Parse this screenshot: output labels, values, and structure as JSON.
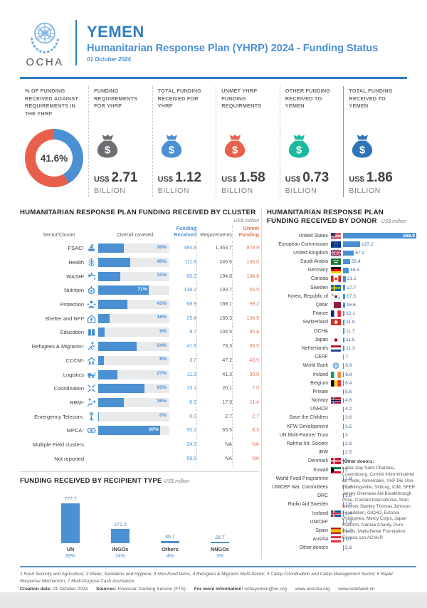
{
  "colors": {
    "brand_blue": "#2f7dc1",
    "bar_blue": "#4a90d2",
    "accent_red": "#e8604c",
    "teal": "#1cb99e",
    "dark_blue": "#2e74b8",
    "gray_bag": "#6d6e71",
    "unmet_orange": "#e0745a",
    "track_gray": "#e9eaec"
  },
  "header": {
    "org": "OCHA",
    "country": "YEMEN",
    "subtitle": "Humanitarian Response Plan (YHRP) 2024 - Funding Status",
    "date": "01 October 2024"
  },
  "stats": [
    {
      "type": "donut",
      "label": "% OF FUNDING RECEIVED AGAINST REQUIREMENTS IN THE YHRP",
      "value": "41.6%",
      "pct": 41.6
    },
    {
      "type": "bag",
      "label": "FUNDING REQUIREMENTS FOR YHRP",
      "icon": "money-bag-icon",
      "color": "#6d6e71",
      "currency": "US$",
      "amount": "2.71",
      "unit": "BILLION"
    },
    {
      "type": "bag",
      "label": "TOTAL FUNDING RECEIVED FOR YHRP",
      "icon": "money-bag-icon",
      "color": "#4a90d2",
      "currency": "US$",
      "amount": "1.12",
      "unit": "BILLION"
    },
    {
      "type": "bag",
      "label": "UNMET YHRP FUNDING REQUIRMENTS",
      "icon": "money-bag-icon",
      "color": "#e8604c",
      "currency": "US$",
      "amount": "1.58",
      "unit": "BILLION"
    },
    {
      "type": "bag",
      "label": "OTHER FUNDING RECEIVED TO YEMEN",
      "icon": "money-bag-icon",
      "color": "#1cb99e",
      "currency": "US$",
      "amount": "0.73",
      "unit": "BILLION",
      "divider": "solid"
    },
    {
      "type": "bag",
      "label": "TOTAL FUNDING RECEIVED TO YEMEN",
      "icon": "money-bag-icon",
      "color": "#2e74b8",
      "currency": "US$",
      "amount": "1.86",
      "unit": "BILLION"
    }
  ],
  "cluster_section": {
    "title": "HUMANITARIAN RESPONSE PLAN FUNDING RECEIVED BY CLUSTER",
    "unit_note": "US$ million",
    "columns": {
      "sector": "Sector/Cluster",
      "covered": "Overall covered",
      "received": "Funding Received",
      "requirements": "Requirements",
      "unmet": "Unmet Funding"
    },
    "rows": [
      {
        "label": "FSAC¹",
        "icon": "ship-icon",
        "pct": 36,
        "received": "484.8",
        "requirements": "1,363.7",
        "unmet": "878.9"
      },
      {
        "label": "Health",
        "icon": "caduceus-icon",
        "pct": 45,
        "received": "111.6",
        "requirements": "249.6",
        "unmet": "138.0"
      },
      {
        "label": "WASH²",
        "icon": "faucet-icon",
        "pct": 31,
        "received": "60.2",
        "requirements": "194.8",
        "unmet": "134.6"
      },
      {
        "label": "Nutrition",
        "icon": "nutrition-icon",
        "pct": 71,
        "received": "138.2",
        "requirements": "193.7",
        "unmet": "55.5"
      },
      {
        "label": "Protection",
        "icon": "protection-icon",
        "pct": 41,
        "received": "68.9",
        "requirements": "168.1",
        "unmet": "99.2"
      },
      {
        "label": "Shelter and NFI³",
        "icon": "shelter-icon",
        "pct": 16,
        "received": "25.4",
        "requirements": "160.3",
        "unmet": "134.9"
      },
      {
        "label": "Education",
        "icon": "education-icon",
        "pct": 9,
        "received": "9.7",
        "requirements": "104.5",
        "unmet": "94.8"
      },
      {
        "label": "Refugees & Migrants⁴",
        "icon": "running-person-icon",
        "pct": 54,
        "received": "41.9",
        "requirements": "78.3",
        "unmet": "36.5"
      },
      {
        "label": "CCCM⁵",
        "icon": "camp-icon",
        "pct": 8,
        "received": "3.7",
        "requirements": "47.2",
        "unmet": "43.5"
      },
      {
        "label": "Logistics",
        "icon": "forklift-icon",
        "pct": 27,
        "received": "11.3",
        "requirements": "41.3",
        "unmet": "30.0"
      },
      {
        "label": "Coordination",
        "icon": "coordination-arrows-icon",
        "pct": 65,
        "received": "13.1",
        "requirements": "20.1",
        "unmet": "7.0"
      },
      {
        "label": "RRM⁶",
        "icon": "rrm-runner-icon",
        "pct": 36,
        "received": "6.5",
        "requirements": "17.9",
        "unmet": "11.4"
      },
      {
        "label": "Emergency Telecom.",
        "icon": "antenna-icon",
        "pct": 0,
        "received": "0.0",
        "requirements": "2.7",
        "unmet": "2.7"
      },
      {
        "label": "MPCA⁷",
        "icon": "cash-icon",
        "pct": 87,
        "received": "55.2",
        "requirements": "63.5",
        "unmet": "8.3"
      },
      {
        "label": "Multiple Field clusters",
        "received": "24.3",
        "requirements": "NA",
        "unmet": "NA"
      },
      {
        "label": "Not reported",
        "received": "69.5",
        "requirements": "NA",
        "unmet": "NA"
      }
    ]
  },
  "donor_section": {
    "title_line1": "HUMANITARIAN RESPONSE PLAN",
    "title_line2": "FUNDING RECEIVED BY DONOR",
    "unit_note": "US$ million",
    "max_value": 588.9,
    "rows": [
      {
        "label": "United States",
        "icon": "flag-us",
        "value": 588.9,
        "display": "588.9"
      },
      {
        "label": "European Commission",
        "icon": "flag-eu",
        "value": 137.2,
        "display": "137.2"
      },
      {
        "label": "United Kingdom",
        "icon": "flag-uk",
        "value": 87.2,
        "display": "87.2"
      },
      {
        "label": "Saudi Arabia",
        "icon": "flag-sa",
        "value": 55.4,
        "display": "55.4"
      },
      {
        "label": "Germany",
        "icon": "flag-de",
        "value": 46.4,
        "display": "46.4"
      },
      {
        "label": "Canada",
        "icon": "flag-ca",
        "value": 21.1,
        "display": "21.1"
      },
      {
        "label": "Sweden",
        "icon": "flag-se",
        "value": 17.7,
        "display": "17.7"
      },
      {
        "label": "Korea, Republic of",
        "icon": "flag-kr",
        "value": 17.3,
        "display": "17.3"
      },
      {
        "label": "Qatar",
        "icon": "flag-qa",
        "value": 16.6,
        "display": "16.6"
      },
      {
        "label": "France",
        "icon": "flag-fr",
        "value": 12.1,
        "display": "12.1"
      },
      {
        "label": "Switzerland",
        "icon": "flag-ch",
        "value": 11.8,
        "display": "11.8"
      },
      {
        "label": "OCHA",
        "value": 11.7,
        "display": "11.7"
      },
      {
        "label": "Japan",
        "icon": "flag-jp",
        "value": 11.5,
        "display": "11.5"
      },
      {
        "label": "Netherlands",
        "icon": "flag-nl",
        "value": 11.3,
        "display": "11.3"
      },
      {
        "label": "CERF",
        "value": 7,
        "display": "7"
      },
      {
        "label": "World Bank",
        "icon": "globe-icon",
        "value": 6.9,
        "display": "6.9"
      },
      {
        "label": "Ireland",
        "icon": "flag-ie",
        "value": 6.8,
        "display": "6.8"
      },
      {
        "label": "Belgium",
        "icon": "flag-be",
        "value": 6.4,
        "display": "6.4"
      },
      {
        "label": "Private",
        "value": 5.6,
        "display": "5.6"
      },
      {
        "label": "Norway",
        "icon": "flag-no",
        "value": 4.6,
        "display": "4.6"
      },
      {
        "label": "UNHCR",
        "value": 4.2,
        "display": "4.2"
      },
      {
        "label": "Save the Children",
        "value": 3.6,
        "display": "3.6"
      },
      {
        "label": "KFW Development",
        "value": 3.5,
        "display": "3.5"
      },
      {
        "label": "UN Multi-Partner Trust",
        "value": 3,
        "display": "3"
      },
      {
        "label": "Rahma Int. Society",
        "value": 2.8,
        "display": "2.8"
      },
      {
        "label": "IRW",
        "value": 2.5,
        "display": "2.5"
      },
      {
        "label": "Denmark",
        "icon": "flag-dk",
        "value": 2,
        "display": "2"
      },
      {
        "label": "Kuwait",
        "icon": "flag-kw",
        "value": 2,
        "display": "2"
      },
      {
        "label": "World Food Programme",
        "value": 1.9,
        "display": "1.9"
      },
      {
        "label": "UNICEF Nat. Committees",
        "value": 1.8,
        "display": "1.8"
      },
      {
        "label": "DRC",
        "value": 1.6,
        "display": "1.6"
      },
      {
        "label": "Radio Aid Sweden",
        "value": 1.6,
        "display": "1.6"
      },
      {
        "label": "Iceland",
        "icon": "flag-is",
        "value": 1.4,
        "display": "1.4"
      },
      {
        "label": "UNICEF",
        "value": 1.3,
        "display": "1.3"
      },
      {
        "label": "Spain",
        "icon": "flag-es",
        "value": 1.2,
        "display": "1.2"
      },
      {
        "label": "Austria",
        "icon": "flag-at",
        "value": 1.1,
        "display": "1.1"
      },
      {
        "label": "Other donors",
        "value": 5.8,
        "display": "5.8"
      }
    ],
    "other_note_title": "*Other donors:",
    "other_note_text": "Latter-Day Saint Charities, Luxembourg, Comité Interministériel de l'Aide, Alimentaire, YHF Die Uno-Flüchtlingshilfe, Stiftung, IOM, SFER Jersey Overseas Aid Breakthrough Prize, Cordaid International, Start Network Stanley Thomas Johnson Foundation, GICHD, Estonia Philippines, Mercy Corps, Japan Platform, Namaa Charity, Pure Hands, Malta Belair Foundation Espana con ACNUR"
  },
  "recipient_section": {
    "title": "FUNDING RECEIVED BY RECIPIENT TYPE",
    "unit_note": "US$ million",
    "max_value": 777.7,
    "bars": [
      {
        "label": "UN",
        "value": 777.7,
        "display": "777.7",
        "pct": "69%"
      },
      {
        "label": "INGOs",
        "value": 271.2,
        "display": "271.2",
        "pct": "24%"
      },
      {
        "label": "Others",
        "value": 46.7,
        "display": "46.7",
        "pct": "4%"
      },
      {
        "label": "NNGOs",
        "value": 28.7,
        "display": "28.7",
        "pct": "3%"
      }
    ]
  },
  "footnotes": {
    "line1": "1 Food Security and Agriculture; 2 Water, Sanitation and Hygiene; 3 Non-Food Items; 4 Refugees & Migrants Multi-Sector; 5 Camp Coordination and Camp Management Sector;  6 Rapid Response Mechanism; 7 Multi-Purpose Cash Assistance",
    "creation_label": "Creation date:",
    "creation_value": "01 October 2024",
    "sources_label": "Sources:",
    "sources_value": "Financial Tracking Service (FTS)",
    "info_label": "For more information:",
    "info_value": "ochayemen@un.org",
    "link1": "www.unocha.org",
    "link2": "www.reliefweb.int"
  },
  "chart_data": [
    {
      "type": "pie",
      "title": "% of funding received against requirements in the YHRP",
      "values": [
        41.6,
        58.4
      ],
      "labels": [
        "Funded",
        "Unmet"
      ],
      "center_label": "41.6%"
    },
    {
      "type": "bar",
      "title": "Humanitarian Response Plan funding received by cluster (US$ million)",
      "categories": [
        "FSAC",
        "Health",
        "WASH",
        "Nutrition",
        "Protection",
        "Shelter and NFI",
        "Education",
        "Refugees & Migrants",
        "CCCM",
        "Logistics",
        "Coordination",
        "RRM",
        "Emergency Telecom.",
        "MPCA",
        "Multiple Field clusters",
        "Not reported"
      ],
      "series": [
        {
          "name": "Overall covered %",
          "values": [
            36,
            45,
            31,
            71,
            41,
            16,
            9,
            54,
            8,
            27,
            65,
            36,
            0,
            87,
            null,
            null
          ]
        },
        {
          "name": "Funding Received",
          "values": [
            484.8,
            111.6,
            60.2,
            138.2,
            68.9,
            25.4,
            9.7,
            41.9,
            3.7,
            11.3,
            13.1,
            6.5,
            0.0,
            55.2,
            24.3,
            69.5
          ]
        },
        {
          "name": "Requirements",
          "values": [
            1363.7,
            249.6,
            194.8,
            193.7,
            168.1,
            160.3,
            104.5,
            78.3,
            47.2,
            41.3,
            20.1,
            17.9,
            2.7,
            63.5,
            null,
            null
          ]
        },
        {
          "name": "Unmet Funding",
          "values": [
            878.9,
            138.0,
            134.6,
            55.5,
            99.2,
            134.9,
            94.8,
            36.5,
            43.5,
            30.0,
            7.0,
            11.4,
            2.7,
            8.3,
            null,
            null
          ]
        }
      ]
    },
    {
      "type": "bar",
      "title": "Humanitarian Response Plan funding received by donor (US$ million)",
      "categories": [
        "United States",
        "European Commission",
        "United Kingdom",
        "Saudi Arabia",
        "Germany",
        "Canada",
        "Sweden",
        "Korea, Republic of",
        "Qatar",
        "France",
        "Switzerland",
        "OCHA",
        "Japan",
        "Netherlands",
        "CERF",
        "World Bank",
        "Ireland",
        "Belgium",
        "Private",
        "Norway",
        "UNHCR",
        "Save the Children",
        "KFW Development",
        "UN Multi-Partner Trust",
        "Rahma Int. Society",
        "IRW",
        "Denmark",
        "Kuwait",
        "World Food Programme",
        "UNICEF Nat. Committees",
        "DRC",
        "Radio Aid Sweden",
        "Iceland",
        "UNICEF",
        "Spain",
        "Austria",
        "Other donors"
      ],
      "values": [
        588.9,
        137.2,
        87.2,
        55.4,
        46.4,
        21.1,
        17.7,
        17.3,
        16.6,
        12.1,
        11.8,
        11.7,
        11.5,
        11.3,
        7,
        6.9,
        6.8,
        6.4,
        5.6,
        4.6,
        4.2,
        3.6,
        3.5,
        3,
        2.8,
        2.5,
        2,
        2,
        1.9,
        1.8,
        1.6,
        1.6,
        1.4,
        1.3,
        1.2,
        1.1,
        5.8
      ]
    },
    {
      "type": "bar",
      "title": "Funding received by recipient type (US$ million)",
      "categories": [
        "UN",
        "INGOs",
        "Others",
        "NNGOs"
      ],
      "values": [
        777.7,
        271.2,
        46.7,
        28.7
      ],
      "percent_labels": [
        "69%",
        "24%",
        "4%",
        "3%"
      ]
    }
  ]
}
